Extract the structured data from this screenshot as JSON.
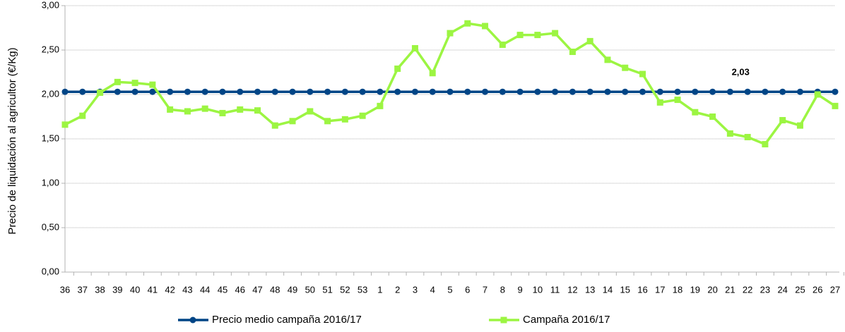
{
  "chart_data": {
    "type": "line",
    "ylabel": "Precio de liquidación al agricultor (€/Kg)",
    "categories": [
      "36",
      "37",
      "38",
      "39",
      "40",
      "41",
      "42",
      "43",
      "44",
      "45",
      "46",
      "47",
      "48",
      "49",
      "50",
      "51",
      "52",
      "53",
      "1",
      "2",
      "3",
      "4",
      "5",
      "6",
      "7",
      "8",
      "9",
      "10",
      "11",
      "12",
      "13",
      "14",
      "15",
      "16",
      "17",
      "18",
      "19",
      "20",
      "21",
      "22",
      "23",
      "24",
      "25",
      "26",
      "27"
    ],
    "series": [
      {
        "name": "Precio medio campaña 2016/17",
        "color": "#004586",
        "marker": "circle",
        "values": [
          2.03,
          2.03,
          2.03,
          2.03,
          2.03,
          2.03,
          2.03,
          2.03,
          2.03,
          2.03,
          2.03,
          2.03,
          2.03,
          2.03,
          2.03,
          2.03,
          2.03,
          2.03,
          2.03,
          2.03,
          2.03,
          2.03,
          2.03,
          2.03,
          2.03,
          2.03,
          2.03,
          2.03,
          2.03,
          2.03,
          2.03,
          2.03,
          2.03,
          2.03,
          2.03,
          2.03,
          2.03,
          2.03,
          2.03,
          2.03,
          2.03,
          2.03,
          2.03,
          2.03,
          2.03
        ]
      },
      {
        "name": "Campaña 2016/17",
        "color": "#9cf542",
        "marker": "square",
        "values": [
          1.66,
          1.76,
          2.02,
          2.14,
          2.13,
          2.11,
          1.83,
          1.81,
          1.84,
          1.79,
          1.83,
          1.82,
          1.65,
          1.7,
          1.81,
          1.7,
          1.72,
          1.76,
          1.87,
          2.29,
          2.52,
          2.24,
          2.69,
          2.8,
          2.77,
          2.56,
          2.67,
          2.67,
          2.69,
          2.48,
          2.6,
          2.39,
          2.3,
          2.23,
          1.91,
          1.94,
          1.8,
          1.75,
          1.56,
          1.52,
          1.44,
          1.71,
          1.65,
          2.0,
          1.87
        ]
      }
    ],
    "annotation": "2,03",
    "ylim": [
      0,
      3
    ],
    "yticks": [
      {
        "value": 0,
        "label": "0,00"
      },
      {
        "value": 0.5,
        "label": "0,50"
      },
      {
        "value": 1,
        "label": "1,00"
      },
      {
        "value": 1.5,
        "label": "1,50"
      },
      {
        "value": 2,
        "label": "2,00"
      },
      {
        "value": 2.5,
        "label": "2,50"
      },
      {
        "value": 3,
        "label": "3,00"
      }
    ],
    "grid": true,
    "legend": "bottom"
  }
}
